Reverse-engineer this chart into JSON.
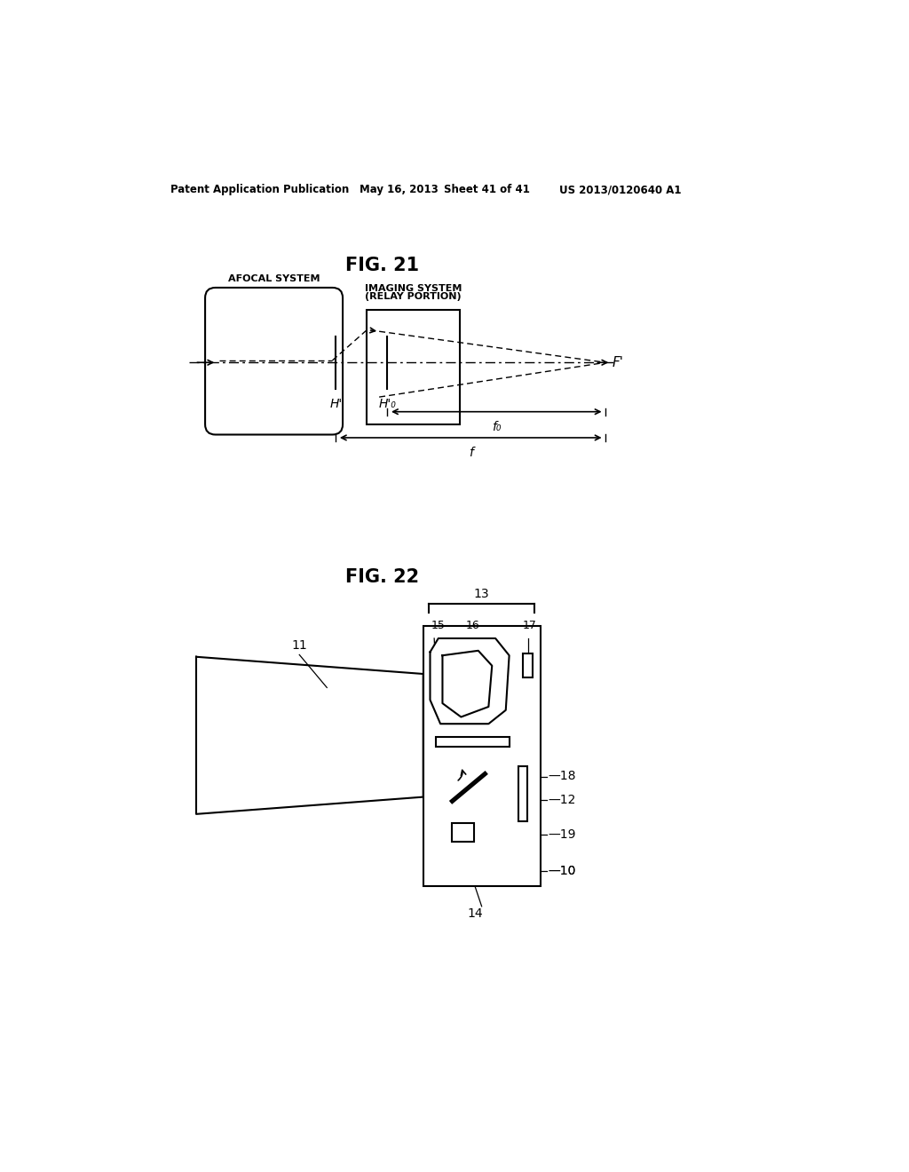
{
  "background_color": "#ffffff",
  "header_text": "Patent Application Publication",
  "header_date": "May 16, 2013",
  "header_sheet": "Sheet 41 of 41",
  "header_patent": "US 2013/0120640 A1",
  "fig21_title": "FIG. 21",
  "fig22_title": "FIG. 22",
  "line_color": "#000000",
  "line_width": 1.5
}
